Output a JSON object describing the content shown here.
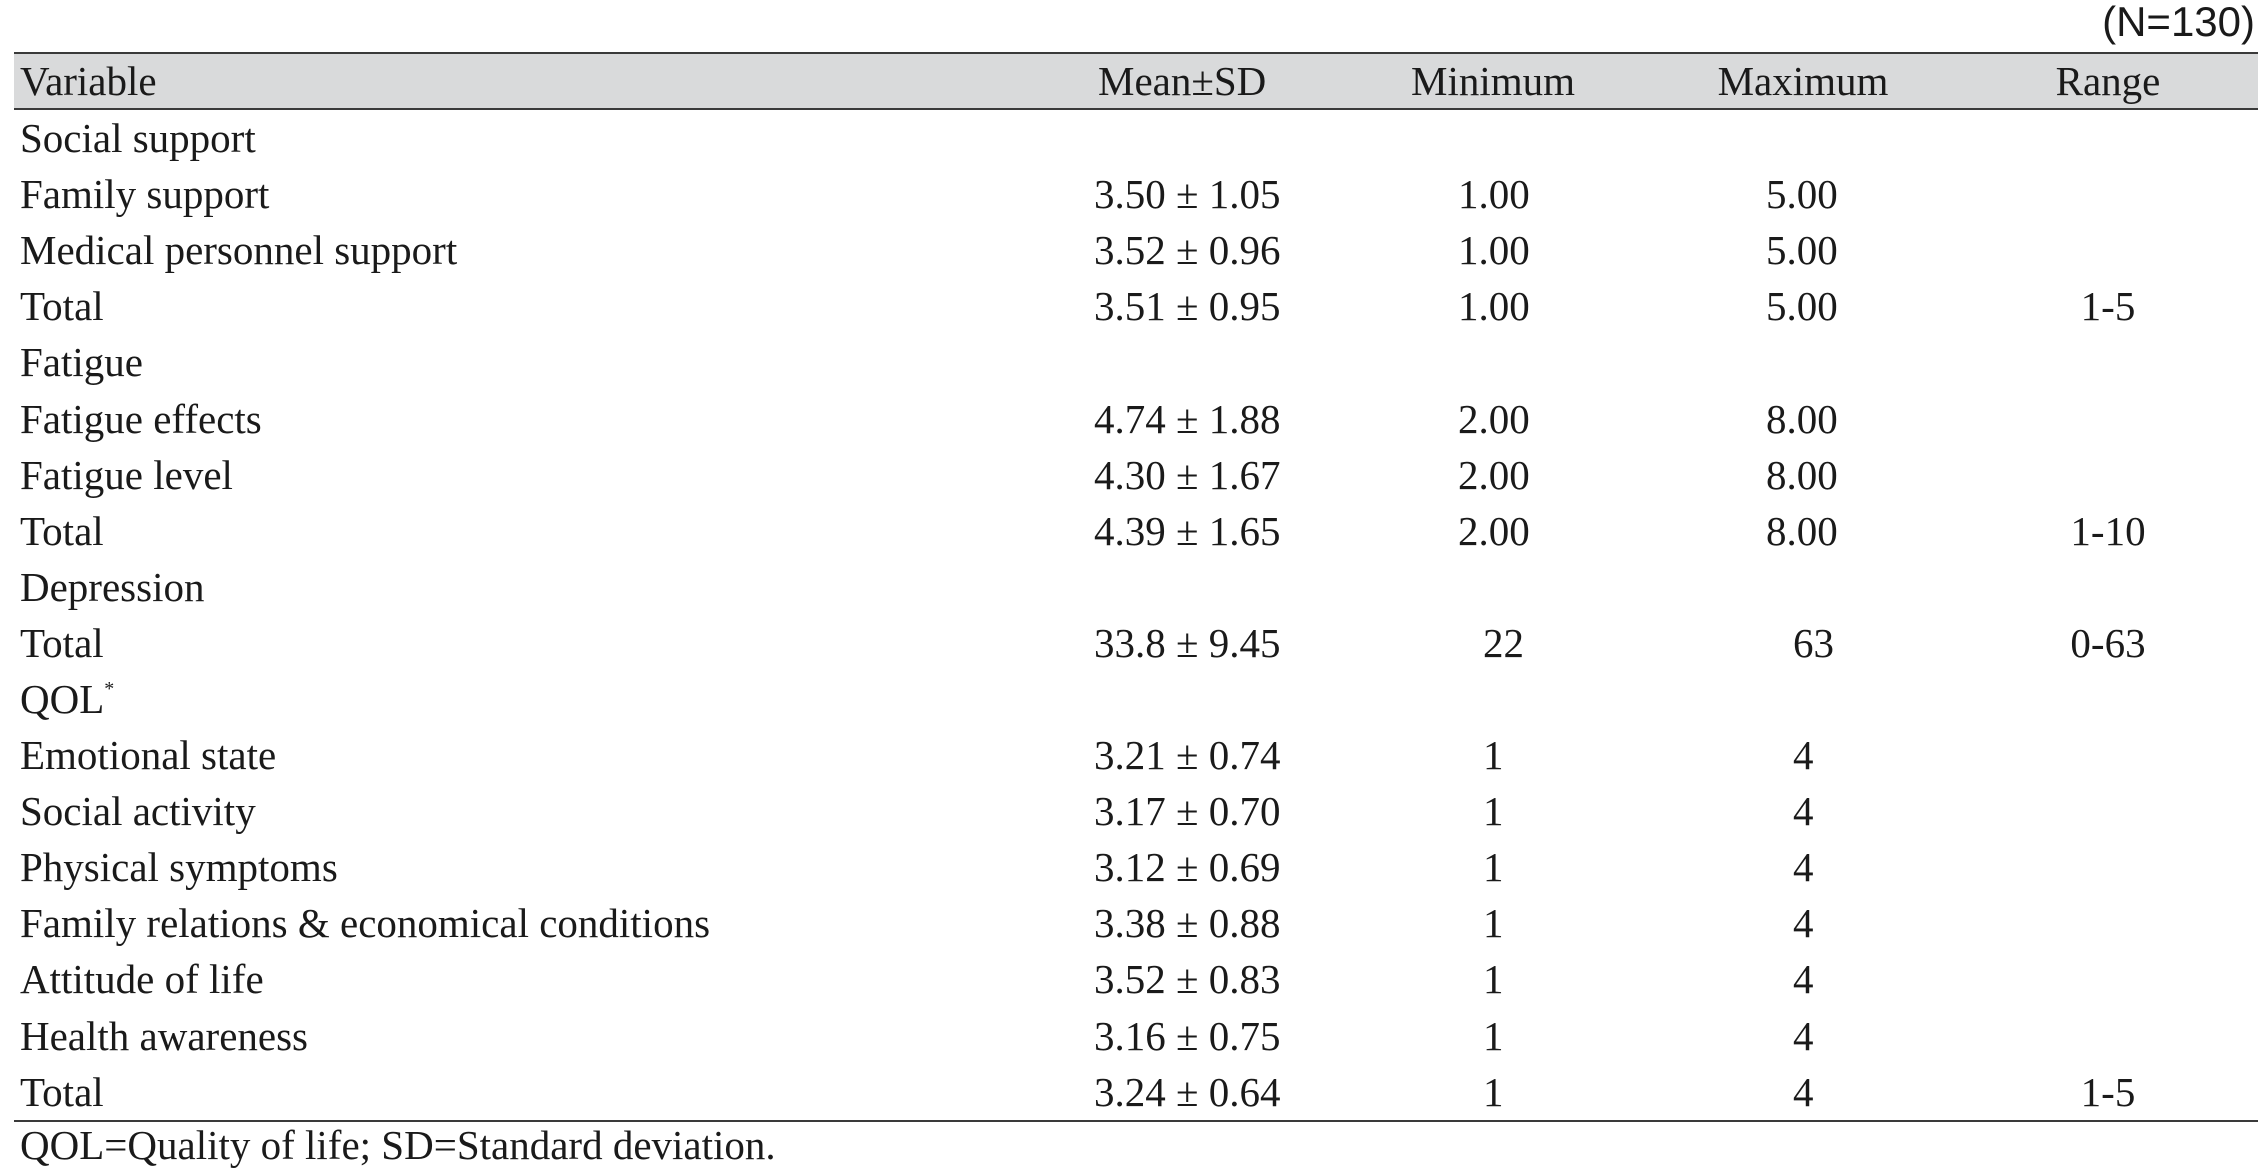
{
  "n_label": "(N=130)",
  "table": {
    "headers": {
      "variable": "Variable",
      "mean_sd": "Mean±SD",
      "minimum": "Minimum",
      "maximum": "Maximum",
      "range": "Range"
    },
    "rows": [
      {
        "variable": "Social support",
        "mean_sd": "",
        "min": "",
        "max": "",
        "range": "",
        "sup": ""
      },
      {
        "variable": "Family support",
        "mean_sd": "3.50 ± 1.05",
        "min": "1.00",
        "max": "5.00",
        "range": "",
        "sup": ""
      },
      {
        "variable": "Medical personnel support",
        "mean_sd": "3.52 ± 0.96",
        "min": "1.00",
        "max": "5.00",
        "range": "",
        "sup": ""
      },
      {
        "variable": "Total",
        "mean_sd": "3.51 ± 0.95",
        "min": "1.00",
        "max": "5.00",
        "range": "1-5",
        "sup": ""
      },
      {
        "variable": "Fatigue",
        "mean_sd": "",
        "min": "",
        "max": "",
        "range": "",
        "sup": ""
      },
      {
        "variable": "Fatigue effects",
        "mean_sd": "4.74 ± 1.88",
        "min": "2.00",
        "max": "8.00",
        "range": "",
        "sup": ""
      },
      {
        "variable": "Fatigue level",
        "mean_sd": "4.30 ± 1.67",
        "min": "2.00",
        "max": "8.00",
        "range": "",
        "sup": ""
      },
      {
        "variable": "Total",
        "mean_sd": "4.39 ± 1.65",
        "min": "2.00",
        "max": "8.00",
        "range": "1-10",
        "sup": ""
      },
      {
        "variable": "Depression",
        "mean_sd": "",
        "min": "",
        "max": "",
        "range": "",
        "sup": ""
      },
      {
        "variable": "Total",
        "mean_sd": "33.8 ± 9.45",
        "min": "22",
        "max": "63",
        "range": "0-63",
        "sup": ""
      },
      {
        "variable": "QOL",
        "mean_sd": "",
        "min": "",
        "max": "",
        "range": "",
        "sup": "*"
      },
      {
        "variable": "Emotional state",
        "mean_sd": "3.21 ± 0.74",
        "min": "1",
        "max": "4",
        "range": "",
        "sup": ""
      },
      {
        "variable": "Social activity",
        "mean_sd": "3.17 ± 0.70",
        "min": "1",
        "max": "4",
        "range": "",
        "sup": ""
      },
      {
        "variable": "Physical symptoms",
        "mean_sd": "3.12 ± 0.69",
        "min": "1",
        "max": "4",
        "range": "",
        "sup": ""
      },
      {
        "variable": "Family relations & economical conditions",
        "mean_sd": "3.38 ± 0.88",
        "min": "1",
        "max": "4",
        "range": "",
        "sup": ""
      },
      {
        "variable": "Attitude of life",
        "mean_sd": "3.52 ± 0.83",
        "min": "1",
        "max": "4",
        "range": "",
        "sup": ""
      },
      {
        "variable": "Health awareness",
        "mean_sd": "3.16 ± 0.75",
        "min": "1",
        "max": "4",
        "range": "",
        "sup": ""
      },
      {
        "variable": "Total",
        "mean_sd": "3.24 ± 0.64",
        "min": "1",
        "max": "4",
        "range": "1-5",
        "sup": ""
      }
    ]
  },
  "footnote": "QOL=Quality of life; SD=Standard deviation."
}
